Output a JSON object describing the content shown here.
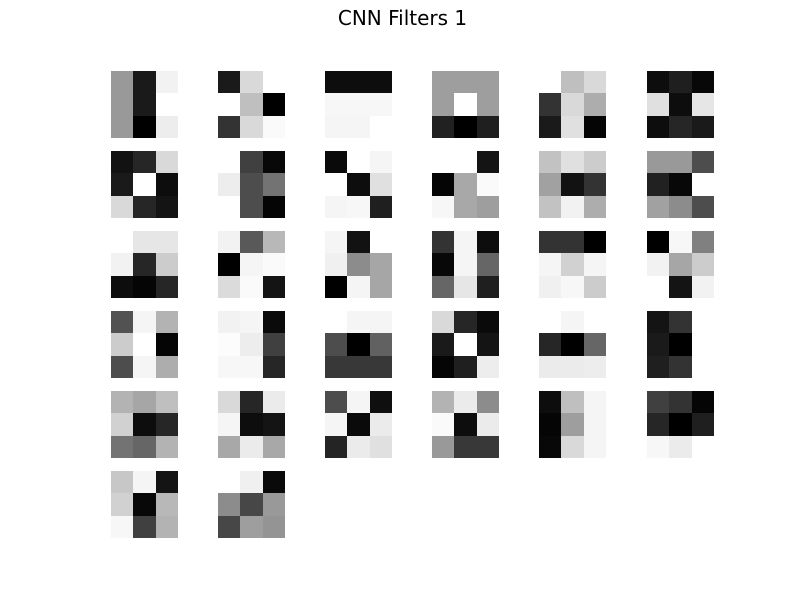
{
  "chart_data": {
    "type": "heatmap",
    "title": "CNN Filters 1",
    "colormap": "gray",
    "grid": {
      "rows": 6,
      "cols": 6
    },
    "filter_count": 32,
    "filters": [
      [
        [
          0.6,
          0.1,
          0.95
        ],
        [
          0.6,
          0.1,
          1.0
        ],
        [
          0.6,
          0.0,
          0.93
        ]
      ],
      [
        [
          0.1,
          0.85,
          1.0
        ],
        [
          1.0,
          0.75,
          0.0
        ],
        [
          0.2,
          0.85,
          0.98
        ]
      ],
      [
        [
          0.05,
          0.05,
          0.05
        ],
        [
          0.97,
          0.97,
          0.97
        ],
        [
          0.96,
          0.96,
          1.0
        ]
      ],
      [
        [
          0.62,
          0.62,
          0.62
        ],
        [
          0.62,
          1.0,
          0.62
        ],
        [
          0.13,
          0.0,
          0.12
        ]
      ],
      [
        [
          1.0,
          0.75,
          0.85
        ],
        [
          0.2,
          0.85,
          0.68
        ],
        [
          0.1,
          0.88,
          0.02
        ]
      ],
      [
        [
          0.05,
          0.12,
          0.03
        ],
        [
          0.88,
          0.05,
          0.9
        ],
        [
          0.05,
          0.15,
          0.1
        ]
      ],
      [
        [
          0.07,
          0.15,
          0.85
        ],
        [
          0.1,
          1.0,
          0.05
        ],
        [
          0.85,
          0.15,
          0.08
        ]
      ],
      [
        [
          1.0,
          0.25,
          0.03
        ],
        [
          0.93,
          0.3,
          0.45
        ],
        [
          1.0,
          0.3,
          0.02
        ]
      ],
      [
        [
          0.04,
          1.0,
          0.96
        ],
        [
          1.0,
          0.05,
          0.88
        ],
        [
          0.96,
          0.97,
          0.12
        ]
      ],
      [
        [
          1.0,
          1.0,
          0.08
        ],
        [
          0.02,
          0.66,
          0.98
        ],
        [
          0.97,
          0.66,
          0.62
        ]
      ],
      [
        [
          0.76,
          0.88,
          0.8
        ],
        [
          0.63,
          0.07,
          0.2
        ],
        [
          0.76,
          0.95,
          0.68
        ]
      ],
      [
        [
          0.6,
          0.6,
          0.3
        ],
        [
          0.13,
          0.03,
          1.0
        ],
        [
          0.63,
          0.55,
          0.3
        ]
      ],
      [
        [
          1.0,
          0.9,
          0.9
        ],
        [
          0.95,
          0.15,
          0.8
        ],
        [
          0.05,
          0.02,
          0.15
        ]
      ],
      [
        [
          0.95,
          0.35,
          0.72
        ],
        [
          0.0,
          0.96,
          0.98
        ],
        [
          0.86,
          0.98,
          0.08
        ]
      ],
      [
        [
          0.96,
          0.07,
          1.0
        ],
        [
          0.94,
          0.55,
          0.65
        ],
        [
          0.0,
          0.96,
          0.65
        ]
      ],
      [
        [
          0.2,
          0.96,
          0.05
        ],
        [
          0.03,
          0.96,
          0.4
        ],
        [
          0.4,
          0.9,
          0.12
        ]
      ],
      [
        [
          0.2,
          0.2,
          0.0
        ],
        [
          0.96,
          0.82,
          0.96
        ],
        [
          0.94,
          0.97,
          0.8
        ]
      ],
      [
        [
          0.0,
          0.97,
          0.5
        ],
        [
          0.95,
          0.65,
          0.8
        ],
        [
          1.0,
          0.08,
          0.95
        ]
      ],
      [
        [
          0.32,
          0.96,
          0.7
        ],
        [
          0.8,
          1.0,
          0.02
        ],
        [
          0.3,
          0.96,
          0.68
        ]
      ],
      [
        [
          0.95,
          0.96,
          0.04
        ],
        [
          0.99,
          0.93,
          0.25
        ],
        [
          0.97,
          0.97,
          0.15
        ]
      ],
      [
        [
          1.0,
          0.96,
          0.96
        ],
        [
          0.3,
          0.0,
          0.38
        ],
        [
          0.22,
          0.22,
          0.22
        ]
      ],
      [
        [
          0.85,
          0.15,
          0.04
        ],
        [
          0.1,
          1.0,
          0.08
        ],
        [
          0.02,
          0.12,
          0.93
        ]
      ],
      [
        [
          1.0,
          0.96,
          1.0
        ],
        [
          0.15,
          0.0,
          0.4
        ],
        [
          0.92,
          0.92,
          0.93
        ]
      ],
      [
        [
          0.08,
          0.2,
          1.0
        ],
        [
          0.1,
          0.0,
          1.0
        ],
        [
          0.12,
          0.2,
          1.0
        ]
      ],
      [
        [
          0.7,
          0.65,
          0.75
        ],
        [
          0.82,
          0.05,
          0.15
        ],
        [
          0.45,
          0.4,
          0.7
        ]
      ],
      [
        [
          0.85,
          0.15,
          0.92
        ],
        [
          0.96,
          0.05,
          0.08
        ],
        [
          0.66,
          0.92,
          0.66
        ]
      ],
      [
        [
          0.3,
          0.96,
          0.06
        ],
        [
          0.96,
          0.04,
          0.92
        ],
        [
          0.14,
          0.92,
          0.88
        ]
      ],
      [
        [
          0.7,
          0.92,
          0.55
        ],
        [
          0.98,
          0.05,
          0.92
        ],
        [
          0.6,
          0.22,
          0.22
        ]
      ],
      [
        [
          0.05,
          0.75,
          0.96
        ],
        [
          0.02,
          0.62,
          0.96
        ],
        [
          0.03,
          0.85,
          0.96
        ]
      ],
      [
        [
          0.25,
          0.2,
          0.02
        ],
        [
          0.15,
          0.0,
          0.12
        ],
        [
          0.97,
          0.92,
          1.0
        ]
      ],
      [
        [
          0.78,
          0.96,
          0.08
        ],
        [
          0.82,
          0.03,
          0.72
        ],
        [
          0.97,
          0.25,
          0.7
        ]
      ],
      [
        [
          1.0,
          0.94,
          0.04
        ],
        [
          0.55,
          0.28,
          0.6
        ],
        [
          0.28,
          0.62,
          0.58
        ]
      ]
    ]
  }
}
